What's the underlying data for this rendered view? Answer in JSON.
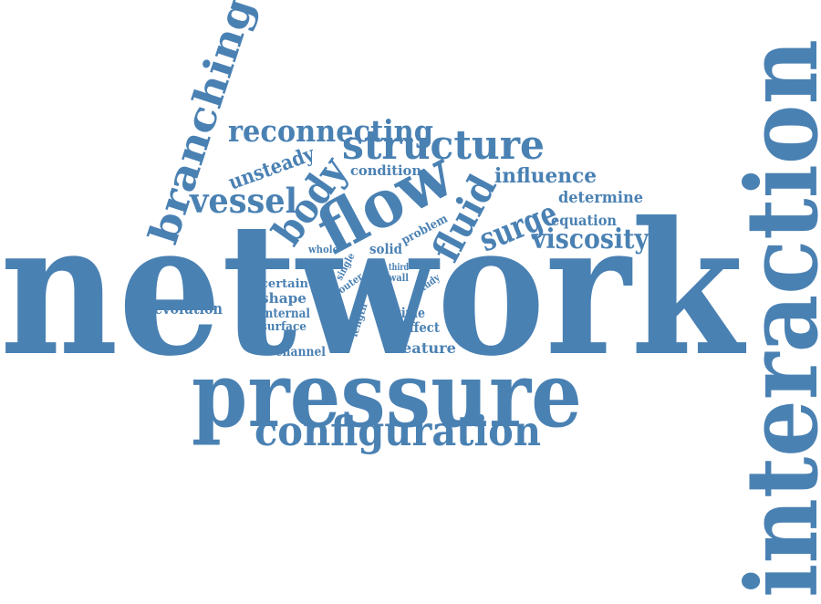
{
  "color": "#4a81b3",
  "words": [
    "network",
    "interaction",
    "pressure",
    "flow",
    "configuration",
    "structure",
    "branching",
    "fluid",
    "body",
    "reconnecting",
    "vessel",
    "surge",
    "viscosity",
    "unsteady",
    "influence",
    "determine",
    "equation",
    "condition",
    "problem",
    "solid",
    "whole",
    "evolution",
    "certain",
    "shape",
    "internal",
    "surface",
    "channel",
    "third",
    "wall",
    "single",
    "outer",
    "study",
    "length",
    "time",
    "effect",
    "feature"
  ]
}
